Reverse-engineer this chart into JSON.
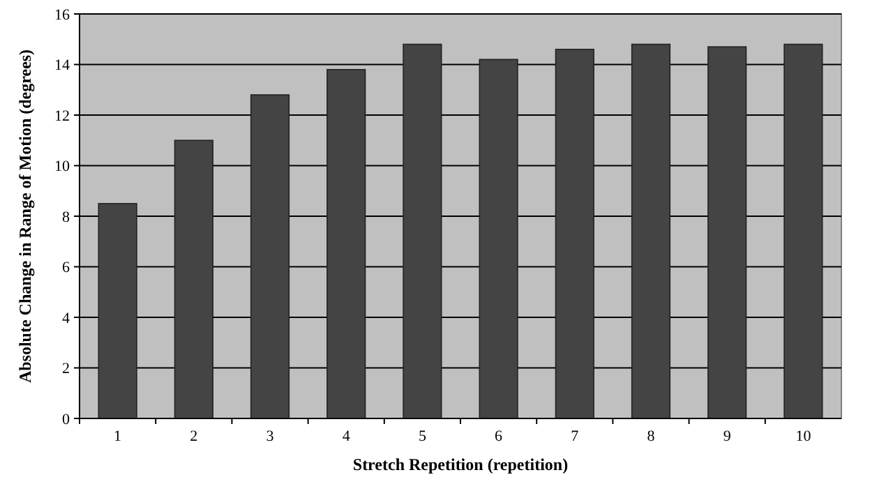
{
  "chart_data": {
    "type": "bar",
    "xlabel": "Stretch Repetition (repetition)",
    "ylabel": "Absolute Change in Range of Motion (degrees)",
    "categories": [
      "1",
      "2",
      "3",
      "4",
      "5",
      "6",
      "7",
      "8",
      "9",
      "10"
    ],
    "values": [
      8.5,
      11,
      12.8,
      13.8,
      14.8,
      14.2,
      14.6,
      14.8,
      14.7,
      14.8
    ],
    "color": "#444444",
    "ylim": [
      0,
      16
    ],
    "yticks": [
      0,
      2,
      4,
      6,
      8,
      10,
      12,
      14,
      16
    ],
    "grid": "y"
  }
}
